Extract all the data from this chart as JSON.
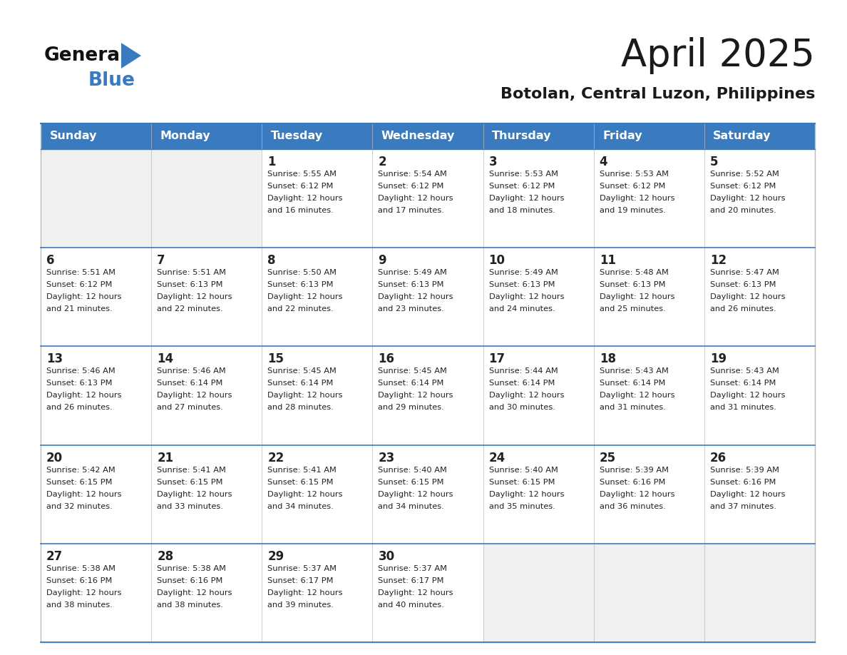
{
  "title": "April 2025",
  "subtitle": "Botolan, Central Luzon, Philippines",
  "header_color": "#3a7bbf",
  "header_text_color": "#ffffff",
  "cell_bg_white": "#ffffff",
  "cell_bg_gray": "#f0f0f0",
  "border_color": "#3a7bbf",
  "text_color": "#222222",
  "days_of_week": [
    "Sunday",
    "Monday",
    "Tuesday",
    "Wednesday",
    "Thursday",
    "Friday",
    "Saturday"
  ],
  "calendar_data": [
    [
      {
        "day": "",
        "sunrise": "",
        "sunset": "",
        "daylight": ""
      },
      {
        "day": "",
        "sunrise": "",
        "sunset": "",
        "daylight": ""
      },
      {
        "day": "1",
        "sunrise": "5:55 AM",
        "sunset": "6:12 PM",
        "daylight": "and 16 minutes."
      },
      {
        "day": "2",
        "sunrise": "5:54 AM",
        "sunset": "6:12 PM",
        "daylight": "and 17 minutes."
      },
      {
        "day": "3",
        "sunrise": "5:53 AM",
        "sunset": "6:12 PM",
        "daylight": "and 18 minutes."
      },
      {
        "day": "4",
        "sunrise": "5:53 AM",
        "sunset": "6:12 PM",
        "daylight": "and 19 minutes."
      },
      {
        "day": "5",
        "sunrise": "5:52 AM",
        "sunset": "6:12 PM",
        "daylight": "and 20 minutes."
      }
    ],
    [
      {
        "day": "6",
        "sunrise": "5:51 AM",
        "sunset": "6:12 PM",
        "daylight": "and 21 minutes."
      },
      {
        "day": "7",
        "sunrise": "5:51 AM",
        "sunset": "6:13 PM",
        "daylight": "and 22 minutes."
      },
      {
        "day": "8",
        "sunrise": "5:50 AM",
        "sunset": "6:13 PM",
        "daylight": "and 22 minutes."
      },
      {
        "day": "9",
        "sunrise": "5:49 AM",
        "sunset": "6:13 PM",
        "daylight": "and 23 minutes."
      },
      {
        "day": "10",
        "sunrise": "5:49 AM",
        "sunset": "6:13 PM",
        "daylight": "and 24 minutes."
      },
      {
        "day": "11",
        "sunrise": "5:48 AM",
        "sunset": "6:13 PM",
        "daylight": "and 25 minutes."
      },
      {
        "day": "12",
        "sunrise": "5:47 AM",
        "sunset": "6:13 PM",
        "daylight": "and 26 minutes."
      }
    ],
    [
      {
        "day": "13",
        "sunrise": "5:46 AM",
        "sunset": "6:13 PM",
        "daylight": "and 26 minutes."
      },
      {
        "day": "14",
        "sunrise": "5:46 AM",
        "sunset": "6:14 PM",
        "daylight": "and 27 minutes."
      },
      {
        "day": "15",
        "sunrise": "5:45 AM",
        "sunset": "6:14 PM",
        "daylight": "and 28 minutes."
      },
      {
        "day": "16",
        "sunrise": "5:45 AM",
        "sunset": "6:14 PM",
        "daylight": "and 29 minutes."
      },
      {
        "day": "17",
        "sunrise": "5:44 AM",
        "sunset": "6:14 PM",
        "daylight": "and 30 minutes."
      },
      {
        "day": "18",
        "sunrise": "5:43 AM",
        "sunset": "6:14 PM",
        "daylight": "and 31 minutes."
      },
      {
        "day": "19",
        "sunrise": "5:43 AM",
        "sunset": "6:14 PM",
        "daylight": "and 31 minutes."
      }
    ],
    [
      {
        "day": "20",
        "sunrise": "5:42 AM",
        "sunset": "6:15 PM",
        "daylight": "and 32 minutes."
      },
      {
        "day": "21",
        "sunrise": "5:41 AM",
        "sunset": "6:15 PM",
        "daylight": "and 33 minutes."
      },
      {
        "day": "22",
        "sunrise": "5:41 AM",
        "sunset": "6:15 PM",
        "daylight": "and 34 minutes."
      },
      {
        "day": "23",
        "sunrise": "5:40 AM",
        "sunset": "6:15 PM",
        "daylight": "and 34 minutes."
      },
      {
        "day": "24",
        "sunrise": "5:40 AM",
        "sunset": "6:15 PM",
        "daylight": "and 35 minutes."
      },
      {
        "day": "25",
        "sunrise": "5:39 AM",
        "sunset": "6:16 PM",
        "daylight": "and 36 minutes."
      },
      {
        "day": "26",
        "sunrise": "5:39 AM",
        "sunset": "6:16 PM",
        "daylight": "and 37 minutes."
      }
    ],
    [
      {
        "day": "27",
        "sunrise": "5:38 AM",
        "sunset": "6:16 PM",
        "daylight": "and 38 minutes."
      },
      {
        "day": "28",
        "sunrise": "5:38 AM",
        "sunset": "6:16 PM",
        "daylight": "and 38 minutes."
      },
      {
        "day": "29",
        "sunrise": "5:37 AM",
        "sunset": "6:17 PM",
        "daylight": "and 39 minutes."
      },
      {
        "day": "30",
        "sunrise": "5:37 AM",
        "sunset": "6:17 PM",
        "daylight": "and 40 minutes."
      },
      {
        "day": "",
        "sunrise": "",
        "sunset": "",
        "daylight": ""
      },
      {
        "day": "",
        "sunrise": "",
        "sunset": "",
        "daylight": ""
      },
      {
        "day": "",
        "sunrise": "",
        "sunset": "",
        "daylight": ""
      }
    ]
  ]
}
